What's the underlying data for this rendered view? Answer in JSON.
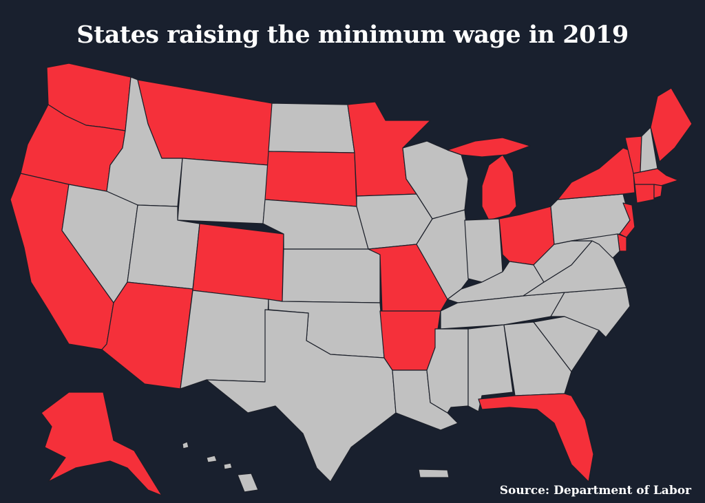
{
  "title": "States raising the minimum wage in 2019",
  "source": "Source: Department of Labor",
  "colors": {
    "background": "#19202e",
    "raising": "#f5303a",
    "not_raising": "#c1c1c1",
    "border": "#1b1f29",
    "text": "#ffffff"
  },
  "states_raising": [
    "WA",
    "OR",
    "CA",
    "AZ",
    "CO",
    "MT",
    "SD",
    "MN",
    "MO",
    "AR",
    "MI",
    "OH",
    "FL",
    "NY",
    "VT",
    "ME",
    "MA",
    "RI",
    "CT",
    "NJ",
    "DE",
    "AK"
  ],
  "states_not_raising": [
    "ID",
    "NV",
    "UT",
    "WY",
    "NM",
    "TX",
    "ND",
    "NE",
    "KS",
    "OK",
    "IA",
    "WI",
    "IL",
    "IN",
    "KY",
    "TN",
    "MS",
    "AL",
    "LA",
    "GA",
    "SC",
    "NC",
    "VA",
    "WV",
    "PA",
    "MD",
    "NH",
    "HI"
  ]
}
